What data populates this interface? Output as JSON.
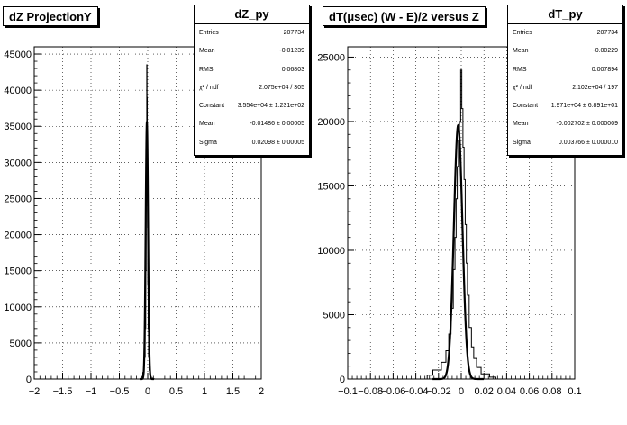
{
  "chart_data": [
    {
      "type": "histogram",
      "title": "dZ ProjectionY",
      "stats": {
        "name": "dZ_py",
        "rows": [
          {
            "label": "Entries",
            "value": "207734"
          },
          {
            "label": "Mean",
            "value": "-0.01239"
          },
          {
            "label": "RMS",
            "value": "0.06803"
          },
          {
            "label": "χ² / ndf",
            "value": "2.075e+04 / 305"
          },
          {
            "label": "Constant",
            "value": "3.554e+04 ± 1.231e+02"
          },
          {
            "label": "Mean",
            "value": "-0.01486 ± 0.00005"
          },
          {
            "label": "Sigma",
            "value": "0.02098 ± 0.00005"
          }
        ]
      },
      "xlim": [
        -2,
        2
      ],
      "ylim": [
        0,
        46000
      ],
      "grid": true,
      "xticks": [
        "−2",
        "−1.5",
        "−1",
        "−0.5",
        "0",
        "0.5",
        "1",
        "1.5",
        "2"
      ],
      "xtick_values": [
        -2,
        -1.5,
        -1,
        -0.5,
        0,
        0.5,
        1,
        1.5,
        2
      ],
      "yticks": [
        "0",
        "5000",
        "10000",
        "15000",
        "20000",
        "25000",
        "30000",
        "35000",
        "40000",
        "45000"
      ],
      "ytick_values": [
        0,
        5000,
        10000,
        15000,
        20000,
        25000,
        30000,
        35000,
        40000,
        45000
      ],
      "histogram": {
        "x": [
          -0.1,
          -0.075,
          -0.05,
          -0.04,
          -0.03,
          -0.025,
          -0.02,
          -0.015,
          -0.01,
          -0.005,
          0,
          0.005,
          0.01,
          0.02,
          0.03,
          0.04,
          0.05,
          0.075,
          0.1
        ],
        "y": [
          300,
          900,
          3000,
          7000,
          15000,
          24000,
          34000,
          43500,
          39000,
          30000,
          21000,
          13000,
          7000,
          3000,
          1200,
          600,
          300,
          120,
          50
        ]
      },
      "fit": {
        "constant": 35540,
        "mean": -0.01486,
        "sigma": 0.02098
      }
    },
    {
      "type": "histogram",
      "title": "dT(μsec) (W - E)/2 versus Z",
      "stats": {
        "name": "dT_py",
        "rows": [
          {
            "label": "Entries",
            "value": "207734"
          },
          {
            "label": "Mean",
            "value": "-0.00229"
          },
          {
            "label": "RMS",
            "value": "0.007894"
          },
          {
            "label": "χ² / ndf",
            "value": "2.102e+04 / 197"
          },
          {
            "label": "Constant",
            "value": "1.971e+04 ± 6.891e+01"
          },
          {
            "label": "Mean",
            "value": "-0.002702 ± 0.000009"
          },
          {
            "label": "Sigma",
            "value": "0.003766 ± 0.000010"
          }
        ]
      },
      "xlim": [
        -0.1,
        0.1
      ],
      "ylim": [
        0,
        25800
      ],
      "grid": true,
      "xticks": [
        "−0.1",
        "−0.08",
        "−0.06",
        "−0.04",
        "−0.02",
        "0",
        "0.02",
        "0.04",
        "0.06",
        "0.08",
        "0.1"
      ],
      "xtick_values": [
        -0.1,
        -0.08,
        -0.06,
        -0.04,
        -0.02,
        0,
        0.02,
        0.04,
        0.06,
        0.08,
        0.1
      ],
      "yticks": [
        "0",
        "5000",
        "10000",
        "15000",
        "20000",
        "25000"
      ],
      "ytick_values": [
        0,
        5000,
        10000,
        15000,
        20000,
        25000
      ],
      "histogram": {
        "x": [
          -0.03,
          -0.02,
          -0.015,
          -0.012,
          -0.01,
          -0.008,
          -0.006,
          -0.005,
          -0.004,
          -0.003,
          -0.002,
          -0.001,
          0,
          0.001,
          0.002,
          0.003,
          0.004,
          0.005,
          0.006,
          0.008,
          0.01,
          0.012,
          0.015,
          0.02,
          0.03
        ],
        "y": [
          300,
          700,
          1300,
          2200,
          3500,
          5500,
          8500,
          11000,
          14000,
          16500,
          18500,
          20000,
          24000,
          21000,
          18000,
          15500,
          12000,
          9000,
          6500,
          4000,
          2500,
          1600,
          900,
          400,
          150
        ]
      },
      "fit": {
        "constant": 19710,
        "mean": -0.002702,
        "sigma": 0.003766
      }
    }
  ]
}
